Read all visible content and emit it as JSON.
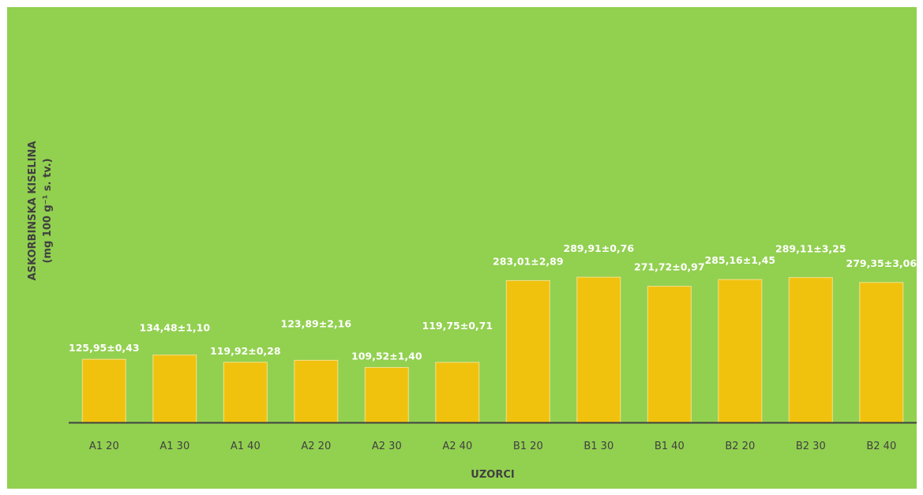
{
  "chart_data": {
    "type": "bar",
    "title": "",
    "xlabel": "UZORCI",
    "ylabel_line1": "ASKORBINSKA KISELINA",
    "ylabel_line2": "(mg 100 g⁻¹ s. tv.)",
    "categories": [
      "A1 20",
      "A1 30",
      "A1 40",
      "A2 20",
      "A2 30",
      "A2 40",
      "B1 20",
      "B1 30",
      "B1 40",
      "B2 20",
      "B2 30",
      "B2 40"
    ],
    "values": [
      125.95,
      134.48,
      119.92,
      123.89,
      109.52,
      119.75,
      283.01,
      289.91,
      271.72,
      285.16,
      289.11,
      279.35
    ],
    "data_labels": [
      "125,95±0,43",
      "134,48±1,10",
      "119,92±0,28",
      "123,89±2,16",
      "109,52±1,40",
      "119,75±0,71",
      "283,01±2,89",
      "289,91±0,76",
      "271,72±0,97",
      "285,16±1,45",
      "289,11±3,25",
      "279,35±3,06"
    ],
    "ylim": [
      0,
      300
    ],
    "grid": false,
    "legend": "none",
    "colors": {
      "background": "#92d050",
      "bar": "#f0c20e",
      "bar_edge": "#f6e08a",
      "axis": "#404040",
      "label": "#ffffff"
    }
  }
}
